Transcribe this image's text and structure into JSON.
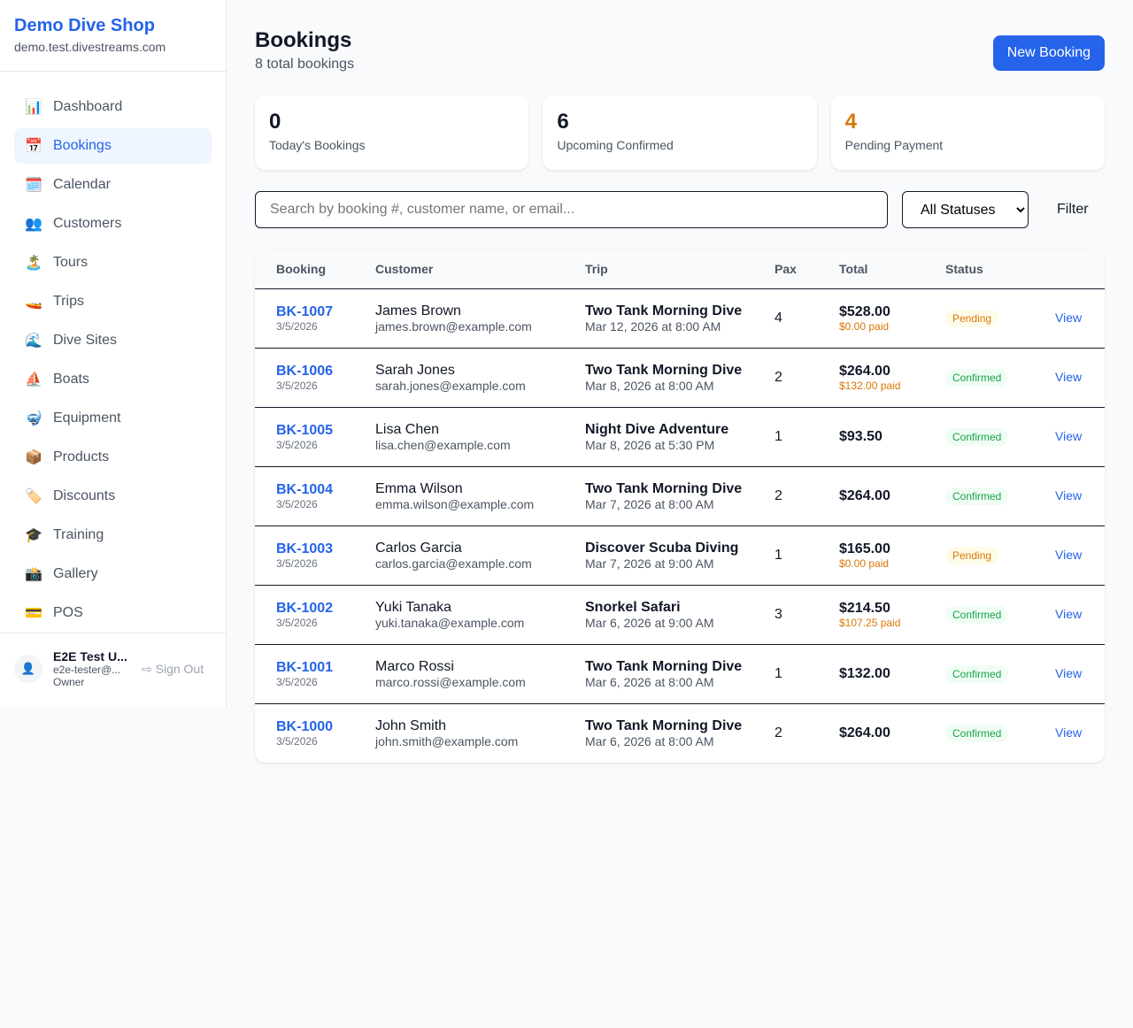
{
  "sidebar": {
    "brand": "Demo Dive Shop",
    "domain": "demo.test.divestreams.com",
    "items": [
      {
        "icon": "📊",
        "label": "Dashboard"
      },
      {
        "icon": "📅",
        "label": "Bookings",
        "active": true
      },
      {
        "icon": "🗓️",
        "label": "Calendar"
      },
      {
        "icon": "👥",
        "label": "Customers"
      },
      {
        "icon": "🏝️",
        "label": "Tours"
      },
      {
        "icon": "🚤",
        "label": "Trips"
      },
      {
        "icon": "🌊",
        "label": "Dive Sites"
      },
      {
        "icon": "⛵",
        "label": "Boats"
      },
      {
        "icon": "🤿",
        "label": "Equipment"
      },
      {
        "icon": "📦",
        "label": "Products"
      },
      {
        "icon": "🏷️",
        "label": "Discounts"
      },
      {
        "icon": "🎓",
        "label": "Training"
      },
      {
        "icon": "📸",
        "label": "Gallery"
      },
      {
        "icon": "💳",
        "label": "POS"
      }
    ],
    "user": {
      "name": "E2E Test U...",
      "email": "e2e-tester@...",
      "role": "Owner",
      "sign_out": "Sign Out"
    }
  },
  "header": {
    "title": "Bookings",
    "subtitle": "8 total bookings",
    "new_booking": "New Booking"
  },
  "stats": [
    {
      "value": "0",
      "label": "Today's Bookings"
    },
    {
      "value": "6",
      "label": "Upcoming Confirmed"
    },
    {
      "value": "4",
      "label": "Pending Payment",
      "color": "#d97706"
    }
  ],
  "filters": {
    "search_placeholder": "Search by booking #, customer name, or email...",
    "status": "All Statuses",
    "filter": "Filter"
  },
  "table": {
    "columns": [
      "Booking",
      "Customer",
      "Trip",
      "Pax",
      "Total",
      "Status",
      ""
    ],
    "rows": [
      {
        "id": "BK-1007",
        "date": "3/5/2026",
        "name": "James Brown",
        "email": "james.brown@example.com",
        "trip": "Two Tank Morning Dive",
        "when": "Mar 12, 2026 at 8:00 AM",
        "pax": "4",
        "total": "$528.00",
        "paid": "$0.00 paid",
        "status": "Pending",
        "action": "View"
      },
      {
        "id": "BK-1006",
        "date": "3/5/2026",
        "name": "Sarah Jones",
        "email": "sarah.jones@example.com",
        "trip": "Two Tank Morning Dive",
        "when": "Mar 8, 2026 at 8:00 AM",
        "pax": "2",
        "total": "$264.00",
        "paid": "$132.00 paid",
        "status": "Confirmed",
        "action": "View"
      },
      {
        "id": "BK-1005",
        "date": "3/5/2026",
        "name": "Lisa Chen",
        "email": "lisa.chen@example.com",
        "trip": "Night Dive Adventure",
        "when": "Mar 8, 2026 at 5:30 PM",
        "pax": "1",
        "total": "$93.50",
        "paid": "",
        "status": "Confirmed",
        "action": "View"
      },
      {
        "id": "BK-1004",
        "date": "3/5/2026",
        "name": "Emma Wilson",
        "email": "emma.wilson@example.com",
        "trip": "Two Tank Morning Dive",
        "when": "Mar 7, 2026 at 8:00 AM",
        "pax": "2",
        "total": "$264.00",
        "paid": "",
        "status": "Confirmed",
        "action": "View"
      },
      {
        "id": "BK-1003",
        "date": "3/5/2026",
        "name": "Carlos Garcia",
        "email": "carlos.garcia@example.com",
        "trip": "Discover Scuba Diving",
        "when": "Mar 7, 2026 at 9:00 AM",
        "pax": "1",
        "total": "$165.00",
        "paid": "$0.00 paid",
        "status": "Pending",
        "action": "View"
      },
      {
        "id": "BK-1002",
        "date": "3/5/2026",
        "name": "Yuki Tanaka",
        "email": "yuki.tanaka@example.com",
        "trip": "Snorkel Safari",
        "when": "Mar 6, 2026 at 9:00 AM",
        "pax": "3",
        "total": "$214.50",
        "paid": "$107.25 paid",
        "status": "Confirmed",
        "action": "View"
      },
      {
        "id": "BK-1001",
        "date": "3/5/2026",
        "name": "Marco Rossi",
        "email": "marco.rossi@example.com",
        "trip": "Two Tank Morning Dive",
        "when": "Mar 6, 2026 at 8:00 AM",
        "pax": "1",
        "total": "$132.00",
        "paid": "",
        "status": "Confirmed",
        "action": "View"
      },
      {
        "id": "BK-1000",
        "date": "3/5/2026",
        "name": "John Smith",
        "email": "john.smith@example.com",
        "trip": "Two Tank Morning Dive",
        "when": "Mar 6, 2026 at 8:00 AM",
        "pax": "2",
        "total": "$264.00",
        "paid": "",
        "status": "Confirmed",
        "action": "View"
      }
    ]
  }
}
